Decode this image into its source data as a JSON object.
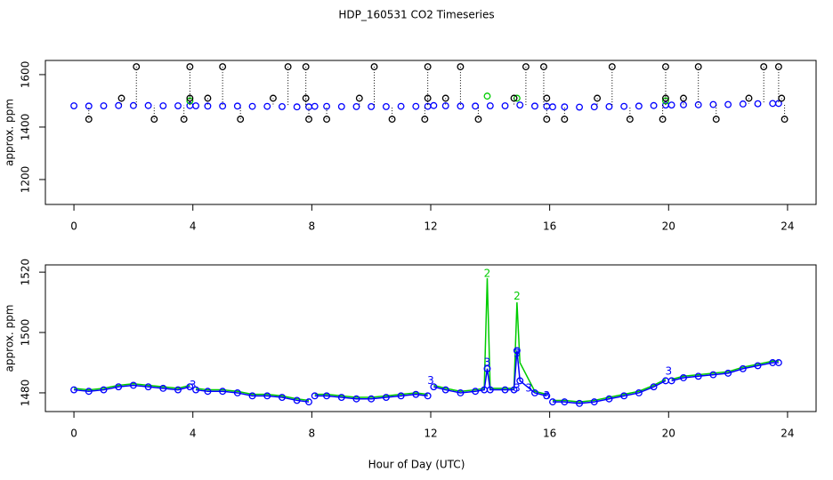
{
  "chart_data": [
    {
      "type": "scatter",
      "title": "HDP_160531  CO2 Timeseries",
      "y_label": "approx. ppm",
      "xlim": [
        -0.96,
        24.96
      ],
      "xticks": [
        0,
        4,
        8,
        12,
        16,
        20,
        24
      ],
      "ylim": [
        1105,
        1654
      ],
      "yticks": [
        1200,
        1400,
        1600
      ],
      "series": [
        {
          "color": "#0000ff",
          "style": "points",
          "x": [
            0,
            0.5,
            1,
            1.5,
            2,
            2.5,
            3,
            3.5,
            3.9,
            4.1,
            4.5,
            5,
            5.5,
            6,
            6.5,
            7,
            7.5,
            7.9,
            8.1,
            8.5,
            9,
            9.5,
            10,
            10.5,
            11,
            11.5,
            11.9,
            12.1,
            12.5,
            13,
            13.5,
            14,
            14.5,
            15,
            15.5,
            15.9,
            16.1,
            16.5,
            17,
            17.5,
            18,
            18.5,
            19,
            19.5,
            19.9,
            20.1,
            20.5,
            21,
            21.5,
            22,
            22.5,
            23,
            23.5,
            23.7
          ],
          "values": [
            1481,
            1480,
            1481,
            1482,
            1482,
            1482,
            1481,
            1481,
            1482,
            1481,
            1480,
            1480,
            1480,
            1479,
            1479,
            1478,
            1477,
            1477,
            1479,
            1479,
            1478,
            1478,
            1478,
            1478,
            1479,
            1479,
            1479,
            1482,
            1481,
            1480,
            1480,
            1481,
            1481,
            1484,
            1480,
            1479,
            1477,
            1477,
            1476,
            1477,
            1478,
            1479,
            1480,
            1482,
            1484,
            1484,
            1485,
            1485,
            1486,
            1486,
            1488,
            1489,
            1490,
            1490
          ]
        },
        {
          "color": "#00cc00",
          "style": "points",
          "x": [
            3.9,
            13.9,
            14.9,
            19.9
          ],
          "values": [
            1500,
            1518,
            1510,
            1500
          ]
        },
        {
          "color": "#000000",
          "style": "points",
          "stems": true,
          "x": [
            0.5,
            1.6,
            2.1,
            2.7,
            3.7,
            3.9,
            3.9,
            4.5,
            5.0,
            5.6,
            6.7,
            7.2,
            7.8,
            7.8,
            7.9,
            8.5,
            9.6,
            10.1,
            10.7,
            11.8,
            11.9,
            11.9,
            12.5,
            13.0,
            13.6,
            14.8,
            15.2,
            15.8,
            15.9,
            15.9,
            16.5,
            17.6,
            18.1,
            18.7,
            19.8,
            19.9,
            19.9,
            20.5,
            21.0,
            21.6,
            22.7,
            23.2,
            23.7,
            23.8,
            23.9
          ],
          "values": [
            1430,
            1510,
            1630,
            1430,
            1430,
            1630,
            1510,
            1510,
            1630,
            1430,
            1510,
            1630,
            1630,
            1510,
            1430,
            1430,
            1510,
            1630,
            1430,
            1430,
            1630,
            1510,
            1510,
            1630,
            1430,
            1510,
            1630,
            1630,
            1510,
            1430,
            1430,
            1510,
            1630,
            1430,
            1430,
            1630,
            1510,
            1510,
            1630,
            1430,
            1510,
            1630,
            1630,
            1510,
            1430
          ]
        }
      ]
    },
    {
      "type": "line",
      "x_label": "Hour of Day (UTC)",
      "y_label": "approx. ppm",
      "xlim": [
        -0.96,
        24.96
      ],
      "xticks": [
        0,
        4,
        8,
        12,
        16,
        20,
        24
      ],
      "ylim": [
        1473.8,
        1522.4
      ],
      "yticks": [
        1480,
        1500,
        1520
      ],
      "series": [
        {
          "color": "#00cc00",
          "style": "line",
          "x": [
            0,
            0.5,
            1,
            1.5,
            2,
            2.5,
            3,
            3.5,
            3.9,
            4,
            4.1,
            4.5,
            5,
            5.5,
            6,
            6.5,
            7,
            7.5,
            7.9,
            8,
            8.1,
            8.5,
            9,
            9.5,
            10,
            10.5,
            11,
            11.5,
            11.9,
            12,
            12.1,
            12.5,
            13,
            13.5,
            13.8,
            13.9,
            14,
            14.5,
            14.8,
            14.9,
            15,
            15.5,
            15.9,
            16,
            16.1,
            16.5,
            17,
            17.5,
            18,
            18.5,
            19,
            19.5,
            19.9,
            20,
            20.1,
            20.5,
            21,
            21.5,
            22,
            22.5,
            23,
            23.5,
            23.7
          ],
          "values": [
            1481.5,
            1481,
            1481.5,
            1482.5,
            1483,
            1482.5,
            1482,
            1481.5,
            1482.5,
            null,
            1481.5,
            1481,
            1481,
            1480.5,
            1479.5,
            1479.5,
            1479,
            1478,
            1477.5,
            null,
            1479.5,
            1479.5,
            1479,
            1478.5,
            1478.5,
            1479,
            1479.5,
            1480,
            1479.5,
            null,
            1482.5,
            1481.5,
            1480.5,
            1481,
            1481.5,
            1518,
            1481.5,
            1481.5,
            1481.5,
            1510,
            1490,
            1480.5,
            1479.5,
            null,
            1477.5,
            1477.5,
            1477,
            1477.5,
            1478.5,
            1479.5,
            1480.5,
            1482.5,
            1484.5,
            null,
            1484.5,
            1485.5,
            1486,
            1486.5,
            1487,
            1488.5,
            1489.5,
            1490.5,
            1490.5
          ]
        },
        {
          "color": "#0000ff",
          "style": "both",
          "x": [
            0,
            0.5,
            1,
            1.5,
            2,
            2.5,
            3,
            3.5,
            3.9,
            4,
            4.1,
            4.5,
            5,
            5.5,
            6,
            6.5,
            7,
            7.5,
            7.9,
            8,
            8.1,
            8.5,
            9,
            9.5,
            10,
            10.5,
            11,
            11.5,
            11.9,
            12,
            12.1,
            12.5,
            13,
            13.5,
            13.8,
            13.9,
            14,
            14.5,
            14.8,
            14.9,
            15,
            15.5,
            15.9,
            16,
            16.1,
            16.5,
            17,
            17.5,
            18,
            18.5,
            19,
            19.5,
            19.9,
            20,
            20.1,
            20.5,
            21,
            21.5,
            22,
            22.5,
            23,
            23.5,
            23.7
          ],
          "values": [
            1481,
            1480.5,
            1481,
            1482,
            1482.5,
            1482,
            1481.5,
            1481,
            1482,
            null,
            1481,
            1480.5,
            1480.5,
            1480,
            1479,
            1479,
            1478.5,
            1477.5,
            1477,
            null,
            1479,
            1479,
            1478.5,
            1478,
            1478,
            1478.5,
            1479,
            1479.5,
            1479,
            null,
            1482,
            1481,
            1480,
            1480.5,
            1481,
            1488,
            1481,
            1481,
            1481,
            1494,
            1484,
            1480,
            1479,
            null,
            1477,
            1477,
            1476.5,
            1477,
            1478,
            1479,
            1480,
            1482,
            1484,
            null,
            1484,
            1485,
            1485.5,
            1486,
            1486.5,
            1488,
            1489,
            1490,
            1490
          ]
        }
      ],
      "annotations": [
        {
          "x": 4.0,
          "y": 1482.5,
          "label": "3",
          "color": "#0000ff"
        },
        {
          "x": 12.0,
          "y": 1484,
          "label": "3",
          "color": "#0000ff"
        },
        {
          "x": 13.9,
          "y": 1490,
          "label": "3",
          "color": "#0000ff"
        },
        {
          "x": 14.9,
          "y": 1493,
          "label": "3",
          "color": "#0000ff"
        },
        {
          "x": 14.9,
          "y": 1481.5,
          "label": "3",
          "color": "#0000ff"
        },
        {
          "x": 15.3,
          "y": 1481.5,
          "label": "3",
          "color": "#0000ff"
        },
        {
          "x": 15.9,
          "y": 1479,
          "label": "3",
          "color": "#0000ff"
        },
        {
          "x": 20.0,
          "y": 1487,
          "label": "3",
          "color": "#0000ff"
        },
        {
          "x": 13.9,
          "y": 1519.5,
          "label": "2",
          "color": "#00cc00"
        },
        {
          "x": 14.9,
          "y": 1512,
          "label": "2",
          "color": "#00cc00"
        }
      ]
    }
  ]
}
